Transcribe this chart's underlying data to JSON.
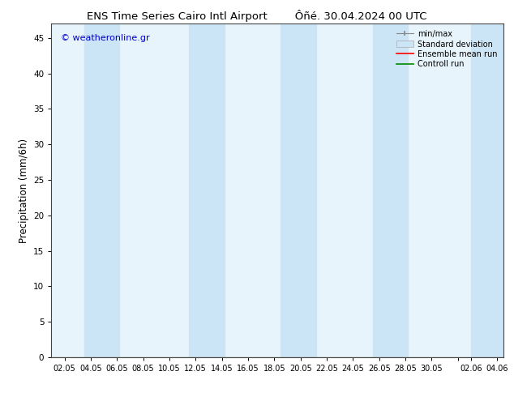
{
  "title_left": "ENS Time Series Cairo Intl Airport",
  "title_right": "Ôñé. 30.04.2024 00 UTC",
  "ylabel": "Precipitation (mm/6h)",
  "watermark": "© weatheronline.gr",
  "ylim": [
    0,
    47
  ],
  "yticks": [
    0,
    5,
    10,
    15,
    20,
    25,
    30,
    35,
    40,
    45
  ],
  "bg_color": "#ffffff",
  "plot_bg_color": "#e8f4fc",
  "band_color": "#cce5f6",
  "legend_labels": [
    "min/max",
    "Standard deviation",
    "Ensemble mean run",
    "Controll run"
  ],
  "legend_line_colors": [
    "#aaaaaa",
    "#bbccdd",
    "#ff0000",
    "#008800"
  ],
  "xtick_positions": [
    2,
    4,
    6,
    8,
    10,
    12,
    14,
    16,
    18,
    20,
    22,
    24,
    26,
    28,
    30,
    32,
    33,
    35
  ],
  "xtick_labels": [
    "02.05",
    "04.05",
    "06.05",
    "08.05",
    "10.05",
    "12.05",
    "14.05",
    "16.05",
    "18.05",
    "20.05",
    "22.05",
    "24.05",
    "26.05",
    "28.05",
    "30.05",
    "",
    "02.06",
    "04.06"
  ],
  "xlim": [
    1.0,
    35.5
  ],
  "shaded_bands": [
    [
      3.5,
      5.5
    ],
    [
      4.8,
      6.2
    ],
    [
      11.5,
      13.5
    ],
    [
      12.8,
      14.2
    ],
    [
      18.5,
      20.5
    ],
    [
      19.8,
      21.2
    ],
    [
      25.5,
      27.5
    ],
    [
      26.8,
      28.2
    ],
    [
      33.0,
      34.5
    ],
    [
      34.0,
      35.5
    ]
  ]
}
